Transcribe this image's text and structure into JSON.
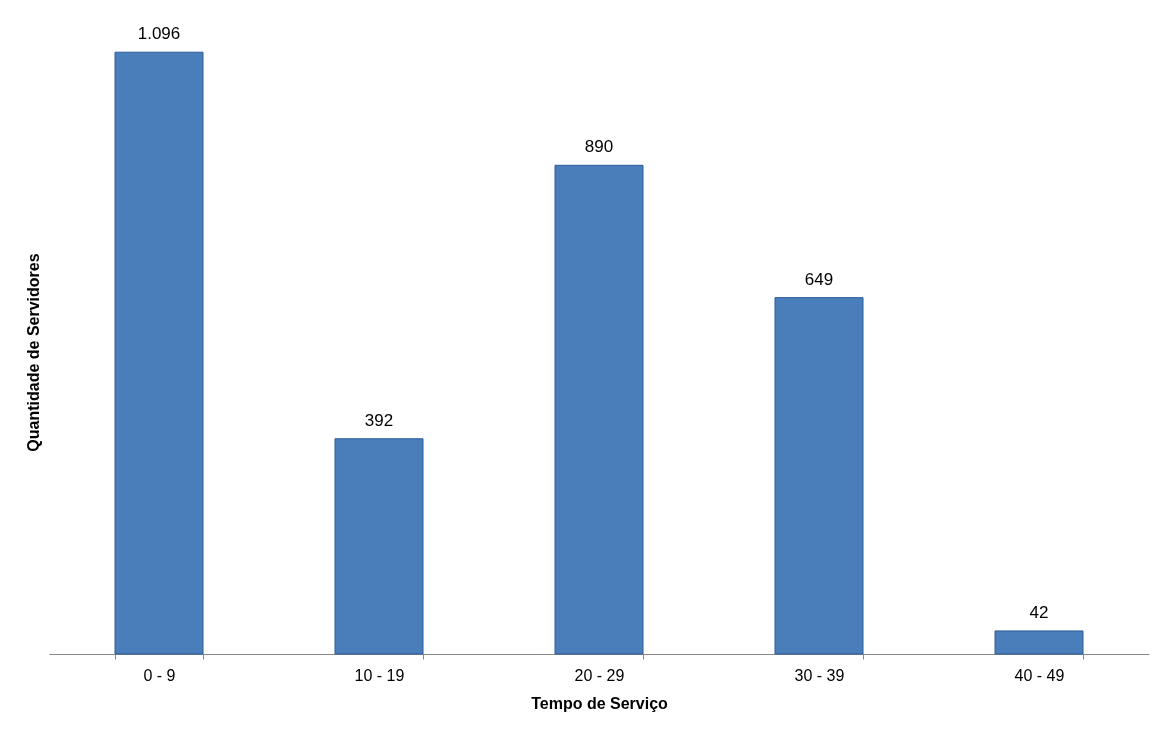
{
  "chart_data": {
    "type": "bar",
    "xlabel": "Tempo de Serviço",
    "ylabel": "Quantidade de Servidores",
    "categories": [
      "0 - 9",
      "10 - 19",
      "20 - 29",
      "30 - 39",
      "40 - 49"
    ],
    "values": [
      1096,
      392,
      890,
      649,
      42
    ],
    "value_labels": [
      "1.096",
      "392",
      "890",
      "649",
      "42"
    ],
    "color": "#4a7ebb"
  }
}
